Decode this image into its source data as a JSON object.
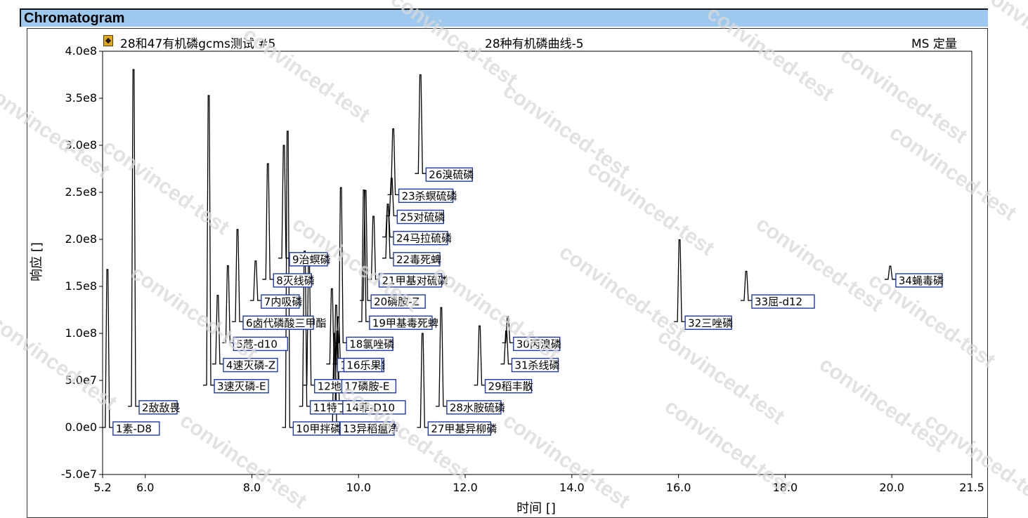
{
  "window": {
    "title": "Chromatogram"
  },
  "header": {
    "sample": "28和47有机磷gcms测试 #5",
    "curve": "28种有机磷曲线-5",
    "mode": "MS 定量"
  },
  "watermark": "convinced-test",
  "colors": {
    "title_bar": "#9ec9ee",
    "trace": "#000000",
    "label_border": "#1f3aa8"
  },
  "chart_data": {
    "type": "line",
    "xlabel": "时间 []",
    "ylabel": "响应 []",
    "xlim": [
      5.2,
      21.5
    ],
    "ylim": [
      -50000000.0,
      400000000.0
    ],
    "x_ticks": [
      5.2,
      6.0,
      8.0,
      10.0,
      12.0,
      14.0,
      16.0,
      18.0,
      20.0,
      21.5
    ],
    "x_tick_labels": [
      "5.2",
      "6.0",
      "8.0",
      "10.0",
      "12.0",
      "14.0",
      "16.0",
      "18.0",
      "20.0",
      "21.5"
    ],
    "y_ticks": [
      -50000000.0,
      0,
      50000000.0,
      100000000.0,
      150000000.0,
      200000000.0,
      250000000.0,
      300000000.0,
      350000000.0,
      400000000.0
    ],
    "y_tick_labels": [
      "-5.0e7",
      "0.0e0",
      "5.0e7",
      "1.0e8",
      "1.5e8",
      "2.0e8",
      "2.5e8",
      "3.0e8",
      "3.5e8",
      "4.0e8"
    ],
    "peaks": [
      {
        "label": "1素-D8",
        "rt": 5.29,
        "base": 0,
        "height": 168000000.0
      },
      {
        "label": "2敌敌畏",
        "rt": 5.78,
        "base": 22500000.0,
        "height": 358000000.0
      },
      {
        "label": "3速灭磷-E",
        "rt": 7.19,
        "base": 45000000.0,
        "height": 308000000.0
      },
      {
        "label": "4速灭磷-Z",
        "rt": 7.36,
        "base": 67500000.0,
        "height": 73000000.0
      },
      {
        "label": "5苊-d10",
        "rt": 7.55,
        "base": 90000000.0,
        "height": 82000000.0
      },
      {
        "label": "6卤代磷酸三甲酯",
        "rt": 7.73,
        "base": 112500000.0,
        "height": 98000000.0
      },
      {
        "label": "7内吸磷",
        "rt": 8.07,
        "base": 135000000.0,
        "height": 42000000.0
      },
      {
        "label": "8灭线磷",
        "rt": 8.3,
        "base": 157500000.0,
        "height": 123000000.0
      },
      {
        "label": "9治螟磷",
        "rt": 8.6,
        "base": 180000000.0,
        "height": 120000000.0
      },
      {
        "label": "10甲拌磷",
        "rt": 8.67,
        "base": 0,
        "height": 315000000.0
      },
      {
        "label": "11特丁硫磷",
        "rt": 8.99,
        "base": 22500000.0,
        "height": 165000000.0
      },
      {
        "label": "12地虫硫磷",
        "rt": 9.07,
        "base": 45000000.0,
        "height": 130000000.0
      },
      {
        "label": "13异稻瘟净",
        "rt": 9.55,
        "base": 0,
        "height": 100000000.0
      },
      {
        "label": "14菲-D10",
        "rt": 9.6,
        "base": 22500000.0,
        "height": 80000000.0
      },
      {
        "label": "15久效磷",
        "rt": 9.5,
        "base": 67500000.0,
        "height": 80000000.0
      },
      {
        "label": "16乐果",
        "rt": 9.62,
        "base": 67500000.0,
        "height": 50000000.0
      },
      {
        "label": "17磷胺-E",
        "rt": 9.58,
        "base": 45000000.0,
        "height": 85000000.0
      },
      {
        "label": "18氯唑磷",
        "rt": 9.67,
        "base": 90000000.0,
        "height": 165000000.0
      },
      {
        "label": "19甲基毒死蜱",
        "rt": 10.1,
        "base": 112500000.0,
        "height": 140000000.0
      },
      {
        "label": "20磷胺-Z",
        "rt": 10.13,
        "base": 135000000.0,
        "height": 117000000.0
      },
      {
        "label": "21甲基对硫磷",
        "rt": 10.28,
        "base": 157500000.0,
        "height": 67000000.0
      },
      {
        "label": "22毒死蜱",
        "rt": 10.55,
        "base": 180000000.0,
        "height": 55000000.0
      },
      {
        "label": "23杀螟硫磷",
        "rt": 10.65,
        "base": 247500000.0,
        "height": 70000000.0
      },
      {
        "label": "24马拉硫磷",
        "rt": 10.55,
        "base": 202500000.0,
        "height": 35000000.0
      },
      {
        "label": "25对硫磷",
        "rt": 10.62,
        "base": 225000000.0,
        "height": 40000000.0
      },
      {
        "label": "26溴硫磷",
        "rt": 11.16,
        "base": 270000000.0,
        "height": 105000000.0
      },
      {
        "label": "27甲基异柳磷",
        "rt": 11.2,
        "base": 0,
        "height": 100000000.0
      },
      {
        "label": "28水胺硫磷",
        "rt": 11.55,
        "base": 22500000.0,
        "height": 105000000.0
      },
      {
        "label": "29稻丰散",
        "rt": 12.27,
        "base": 45000000.0,
        "height": 63000000.0
      },
      {
        "label": "30丙溴磷",
        "rt": 12.8,
        "base": 90000000.0,
        "height": 28000000.0
      },
      {
        "label": "31杀线磷",
        "rt": 12.77,
        "base": 67500000.0,
        "height": 35000000.0
      },
      {
        "label": "32三唑磷",
        "rt": 16.02,
        "base": 112500000.0,
        "height": 87000000.0
      },
      {
        "label": "33屈-d12",
        "rt": 17.27,
        "base": 135000000.0,
        "height": 31000000.0
      },
      {
        "label": "34蝇毒磷",
        "rt": 19.97,
        "base": 157500000.0,
        "height": 14000000.0
      }
    ]
  }
}
